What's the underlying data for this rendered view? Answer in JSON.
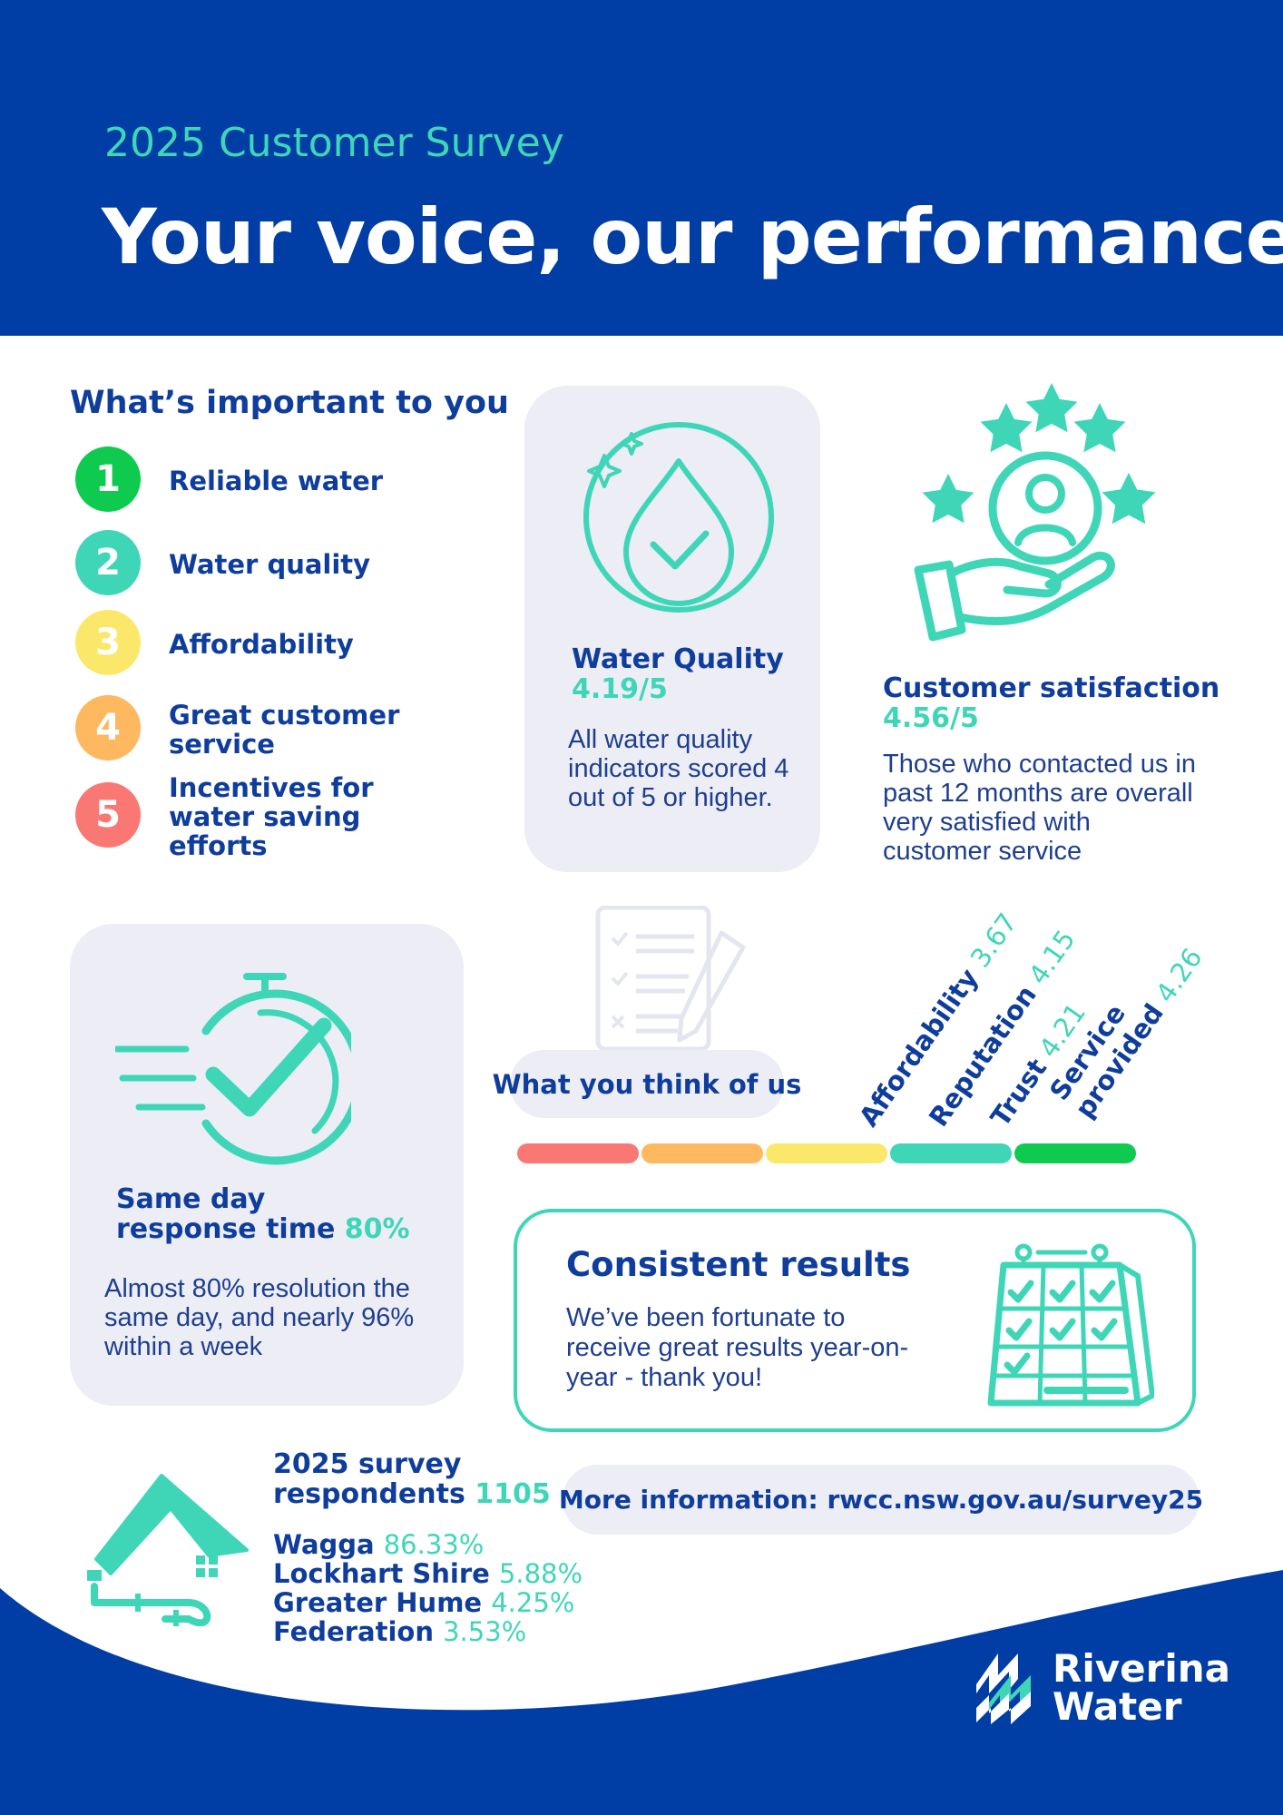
{
  "header": {
    "subtitle": "2025 Customer Survey",
    "title": "Your voice, our performance"
  },
  "priorities": {
    "heading": "What’s important to you",
    "items": [
      {
        "num": "1",
        "label": "Reliable water",
        "color": "#0ecb4f"
      },
      {
        "num": "2",
        "label": "Water quality",
        "color": "#3fd6b8"
      },
      {
        "num": "3",
        "label": "Affordability",
        "color": "#fbe86a"
      },
      {
        "num": "4",
        "label": "Great customer service",
        "color": "#fdb860"
      },
      {
        "num": "5",
        "label": "Incentives for water saving efforts",
        "color": "#fa7873"
      }
    ]
  },
  "water_quality": {
    "title": "Water Quality",
    "score": "4.19/5",
    "text": "All water quality indicators scored 4 out of 5 or higher."
  },
  "satisfaction": {
    "title": "Customer satisfaction",
    "score": "4.56/5",
    "text": "Those who contacted us in past 12 months are overall very satisfied with customer service"
  },
  "response": {
    "title_line1": "Same day",
    "title_line2": "response time",
    "value": "80%",
    "text": "Almost 80% resolution the same day, and nearly 96% within a week"
  },
  "think": {
    "label": "What you think of us",
    "ratings": [
      {
        "name": "Affordability",
        "value": "3.67"
      },
      {
        "name": "Reputation",
        "value": "4.15"
      },
      {
        "name": "Trust",
        "value": "4.21"
      },
      {
        "name_line1": "Service",
        "name_line2": "provided",
        "value": "4.26"
      }
    ],
    "scale_colors": [
      "#fa7873",
      "#fdb860",
      "#fbe86a",
      "#3fd6b8",
      "#0ecb4f"
    ]
  },
  "consistent": {
    "title": "Consistent results",
    "text": "We’ve been fortunate to receive great results year-on-year - thank you!"
  },
  "more_info": "More information: rwcc.nsw.gov.au/survey25",
  "respondents": {
    "title_line1": "2025 survey",
    "title_line2": "respondents",
    "count": "1105",
    "regions": [
      {
        "name": "Wagga",
        "pct": "86.33%"
      },
      {
        "name": "Lockhart Shire",
        "pct": "5.88%"
      },
      {
        "name": "Greater Hume",
        "pct": "4.25%"
      },
      {
        "name": "Federation",
        "pct": "3.53%"
      }
    ]
  },
  "logo": {
    "line1": "Riverina",
    "line2": "Water"
  },
  "colors": {
    "navy": "#003da5",
    "teal": "#3fd6b8",
    "card": "#ecedf5"
  }
}
